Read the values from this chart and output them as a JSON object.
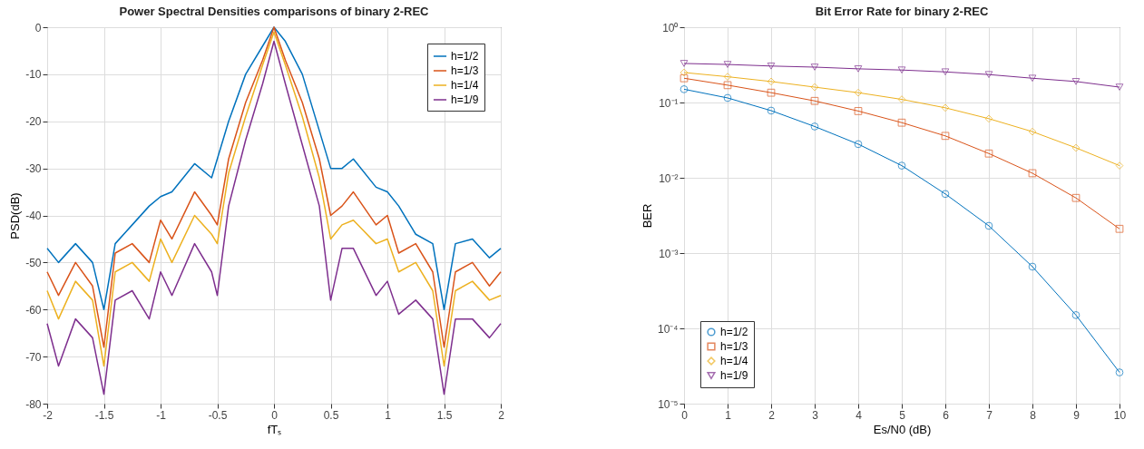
{
  "chart_data": [
    {
      "type": "line",
      "title": "Power Spectral Densities comparisons of binary 2-REC",
      "xlabel": "fTₛ",
      "ylabel": "PSD(dB)",
      "xlim": [
        -2,
        2
      ],
      "xticks": [
        -2,
        -1.5,
        -1,
        -0.5,
        0,
        0.5,
        1,
        1.5,
        2
      ],
      "ylim": [
        -80,
        0
      ],
      "yticks": [
        -80,
        -70,
        -60,
        -50,
        -40,
        -30,
        -20,
        -10,
        0
      ],
      "grid": true,
      "legend": "top right",
      "x": [
        -2,
        -1.9,
        -1.75,
        -1.6,
        -1.5,
        -1.4,
        -1.25,
        -1.1,
        -1,
        -0.9,
        -0.7,
        -0.55,
        -0.5,
        -0.4,
        -0.25,
        -0.1,
        0,
        0.1,
        0.25,
        0.4,
        0.5,
        0.6,
        0.7,
        0.9,
        1,
        1.1,
        1.25,
        1.4,
        1.5,
        1.6,
        1.75,
        1.9,
        2
      ],
      "series": [
        {
          "name": "h=1/2",
          "color": "#0072bd",
          "values": [
            -47,
            -50,
            -46,
            -50,
            -60,
            -46,
            -42,
            -38,
            -36,
            -35,
            -29,
            -32,
            -28,
            -20,
            -10,
            -4,
            0,
            -3,
            -10,
            -22,
            -30,
            -30,
            -28,
            -34,
            -35,
            -38,
            -44,
            -46,
            -60,
            -46,
            -45,
            -49,
            -47
          ]
        },
        {
          "name": "h=1/3",
          "color": "#d95319",
          "values": [
            -52,
            -57,
            -50,
            -55,
            -68,
            -48,
            -46,
            -50,
            -41,
            -45,
            -35,
            -40,
            -42,
            -28,
            -16,
            -7,
            0,
            -7,
            -16,
            -28,
            -40,
            -38,
            -35,
            -42,
            -40,
            -48,
            -46,
            -52,
            -68,
            -52,
            -50,
            -55,
            -52
          ]
        },
        {
          "name": "h=1/4",
          "color": "#edb120",
          "values": [
            -56,
            -62,
            -54,
            -58,
            -72,
            -52,
            -50,
            -54,
            -45,
            -50,
            -40,
            -44,
            -46,
            -31,
            -19,
            -8,
            -1,
            -8,
            -19,
            -32,
            -45,
            -42,
            -41,
            -46,
            -45,
            -52,
            -50,
            -56,
            -72,
            -56,
            -54,
            -58,
            -57
          ]
        },
        {
          "name": "h=1/9",
          "color": "#7e2f8e",
          "values": [
            -63,
            -72,
            -62,
            -66,
            -78,
            -58,
            -56,
            -62,
            -52,
            -57,
            -46,
            -52,
            -57,
            -38,
            -24,
            -12,
            -3,
            -12,
            -25,
            -38,
            -58,
            -47,
            -47,
            -57,
            -54,
            -61,
            -58,
            -62,
            -78,
            -62,
            -62,
            -66,
            -63
          ]
        }
      ]
    },
    {
      "type": "line",
      "title": "Bit Error Rate for binary 2-REC",
      "xlabel": "Es/N0 (dB)",
      "ylabel": "BER",
      "log": true,
      "xlim": [
        0,
        10
      ],
      "xticks": [
        0,
        1,
        2,
        3,
        4,
        5,
        6,
        7,
        8,
        9,
        10
      ],
      "ylim": [
        1e-05,
        1
      ],
      "yticks": [
        {
          "value": 1e-05,
          "label": "10⁻⁵"
        },
        {
          "value": 0.0001,
          "label": "10⁻⁴"
        },
        {
          "value": 0.001,
          "label": "10⁻³"
        },
        {
          "value": 0.01,
          "label": "10⁻²"
        },
        {
          "value": 0.1,
          "label": "10⁻¹"
        },
        {
          "value": 1,
          "label": "10⁰"
        }
      ],
      "grid": true,
      "legend": "bottom left",
      "x": [
        0,
        1,
        2,
        3,
        4,
        5,
        6,
        7,
        8,
        9,
        10
      ],
      "series": [
        {
          "name": "h=1/2",
          "color": "#0072bd",
          "marker": "circle",
          "values": [
            0.15,
            0.115,
            0.078,
            0.048,
            0.028,
            0.0145,
            0.0061,
            0.0023,
            0.00066,
            0.00015,
            2.6e-05
          ]
        },
        {
          "name": "h=1/3",
          "color": "#d95319",
          "marker": "square",
          "values": [
            0.21,
            0.17,
            0.135,
            0.105,
            0.077,
            0.054,
            0.036,
            0.021,
            0.0115,
            0.0054,
            0.0021
          ]
        },
        {
          "name": "h=1/4",
          "color": "#edb120",
          "marker": "diamond",
          "values": [
            0.25,
            0.22,
            0.19,
            0.16,
            0.135,
            0.11,
            0.085,
            0.061,
            0.041,
            0.025,
            0.0145
          ]
        },
        {
          "name": "h=1/9",
          "color": "#7e2f8e",
          "marker": "triangle",
          "values": [
            0.33,
            0.32,
            0.305,
            0.295,
            0.28,
            0.27,
            0.255,
            0.235,
            0.21,
            0.19,
            0.16
          ]
        }
      ]
    }
  ]
}
